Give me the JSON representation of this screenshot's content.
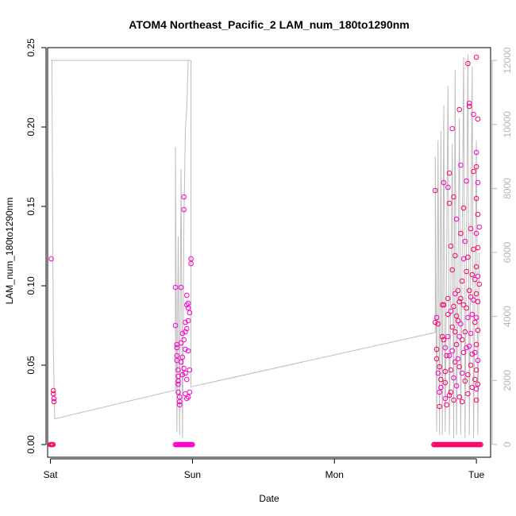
{
  "chart_data": {
    "type": "scatter",
    "title": "ATOM4 Northeast_Pacific_2 LAM_num_180to1290nm",
    "xlabel": "Date",
    "ylabel": "LAM_num_180to1290nm",
    "x_ticks": [
      "Sat",
      "Sun",
      "Mon",
      "Tue"
    ],
    "xlim": [
      -0.02,
      3.1
    ],
    "ylim": [
      -0.008,
      0.25
    ],
    "y_ticks": [
      "0.00",
      "0.05",
      "0.10",
      "0.15",
      "0.20",
      "0.25"
    ],
    "y_right_lim": [
      -400,
      12400
    ],
    "y_right_ticks": [
      "0",
      "2000",
      "4000",
      "6000",
      "8000",
      "10000",
      "12000"
    ],
    "grid": false,
    "colors": {
      "points_primary": "#ff0066",
      "points_secondary": "#ff00cc",
      "right_series": "#bdbdbd",
      "right_axis": "#b5b5b5"
    },
    "series": [
      {
        "axis": "left",
        "points": [
          [
            0.005,
            0.117
          ],
          [
            0.02,
            0.034
          ],
          [
            0.02,
            0.032
          ],
          [
            0.025,
            0.029
          ],
          [
            0.025,
            0.027
          ],
          [
            0.88,
            0.099
          ],
          [
            0.88,
            0.075
          ],
          [
            0.89,
            0.063
          ],
          [
            0.89,
            0.061
          ],
          [
            0.89,
            0.056
          ],
          [
            0.89,
            0.053
          ],
          [
            0.9,
            0.047
          ],
          [
            0.9,
            0.043
          ],
          [
            0.9,
            0.04
          ],
          [
            0.9,
            0.038
          ],
          [
            0.9,
            0.033
          ],
          [
            0.91,
            0.03
          ],
          [
            0.91,
            0.027
          ],
          [
            0.91,
            0.025
          ],
          [
            0.92,
            0.099
          ],
          [
            0.92,
            0.064
          ],
          [
            0.92,
            0.052
          ],
          [
            0.93,
            0.07
          ],
          [
            0.93,
            0.055
          ],
          [
            0.93,
            0.044
          ],
          [
            0.94,
            0.156
          ],
          [
            0.94,
            0.148
          ],
          [
            0.94,
            0.066
          ],
          [
            0.94,
            0.048
          ],
          [
            0.95,
            0.077
          ],
          [
            0.95,
            0.071
          ],
          [
            0.95,
            0.06
          ],
          [
            0.95,
            0.045
          ],
          [
            0.95,
            0.032
          ],
          [
            0.96,
            0.094
          ],
          [
            0.96,
            0.088
          ],
          [
            0.96,
            0.073
          ],
          [
            0.96,
            0.041
          ],
          [
            0.96,
            0.029
          ],
          [
            0.97,
            0.089
          ],
          [
            0.97,
            0.086
          ],
          [
            0.97,
            0.078
          ],
          [
            0.97,
            0.059
          ],
          [
            0.97,
            0.03
          ],
          [
            0.98,
            0.083
          ],
          [
            0.98,
            0.047
          ],
          [
            0.98,
            0.033
          ],
          [
            0.99,
            0.117
          ],
          [
            0.99,
            0.114
          ],
          [
            2.71,
            0.16
          ],
          [
            2.71,
            0.077
          ],
          [
            2.72,
            0.08
          ],
          [
            2.72,
            0.06
          ],
          [
            2.72,
            0.054
          ],
          [
            2.73,
            0.045
          ],
          [
            2.73,
            0.076
          ],
          [
            2.74,
            0.049
          ],
          [
            2.74,
            0.033
          ],
          [
            2.74,
            0.024
          ],
          [
            2.75,
            0.041
          ],
          [
            2.75,
            0.036
          ],
          [
            2.76,
            0.088
          ],
          [
            2.76,
            0.068
          ],
          [
            2.77,
            0.165
          ],
          [
            2.77,
            0.088
          ],
          [
            2.77,
            0.066
          ],
          [
            2.78,
            0.061
          ],
          [
            2.78,
            0.046
          ],
          [
            2.78,
            0.039
          ],
          [
            2.78,
            0.029
          ],
          [
            2.79,
            0.056
          ],
          [
            2.79,
            0.025
          ],
          [
            2.8,
            0.162
          ],
          [
            2.8,
            0.092
          ],
          [
            2.8,
            0.082
          ],
          [
            2.8,
            0.068
          ],
          [
            2.81,
            0.171
          ],
          [
            2.81,
            0.152
          ],
          [
            2.81,
            0.056
          ],
          [
            2.81,
            0.031
          ],
          [
            2.82,
            0.125
          ],
          [
            2.82,
            0.084
          ],
          [
            2.82,
            0.047
          ],
          [
            2.82,
            0.033
          ],
          [
            2.83,
            0.199
          ],
          [
            2.83,
            0.11
          ],
          [
            2.83,
            0.074
          ],
          [
            2.83,
            0.059
          ],
          [
            2.84,
            0.156
          ],
          [
            2.84,
            0.087
          ],
          [
            2.84,
            0.042
          ],
          [
            2.84,
            0.028
          ],
          [
            2.85,
            0.119
          ],
          [
            2.85,
            0.095
          ],
          [
            2.85,
            0.071
          ],
          [
            2.85,
            0.052
          ],
          [
            2.86,
            0.142
          ],
          [
            2.86,
            0.081
          ],
          [
            2.86,
            0.063
          ],
          [
            2.86,
            0.037
          ],
          [
            2.87,
            0.097
          ],
          [
            2.87,
            0.078
          ],
          [
            2.87,
            0.054
          ],
          [
            2.88,
            0.211
          ],
          [
            2.88,
            0.09
          ],
          [
            2.88,
            0.068
          ],
          [
            2.88,
            0.049
          ],
          [
            2.88,
            0.03
          ],
          [
            2.89,
            0.176
          ],
          [
            2.89,
            0.133
          ],
          [
            2.89,
            0.092
          ],
          [
            2.89,
            0.076
          ],
          [
            2.9,
            0.103
          ],
          [
            2.9,
            0.066
          ],
          [
            2.9,
            0.045
          ],
          [
            2.9,
            0.027
          ],
          [
            2.91,
            0.149
          ],
          [
            2.91,
            0.117
          ],
          [
            2.91,
            0.088
          ],
          [
            2.91,
            0.058
          ],
          [
            2.92,
            0.128
          ],
          [
            2.92,
            0.071
          ],
          [
            2.92,
            0.04
          ],
          [
            2.93,
            0.166
          ],
          [
            2.93,
            0.109
          ],
          [
            2.93,
            0.086
          ],
          [
            2.93,
            0.061
          ],
          [
            2.94,
            0.24
          ],
          [
            2.94,
            0.118
          ],
          [
            2.94,
            0.08
          ],
          [
            2.94,
            0.044
          ],
          [
            2.94,
            0.032
          ],
          [
            2.95,
            0.215
          ],
          [
            2.95,
            0.213
          ],
          [
            2.95,
            0.097
          ],
          [
            2.95,
            0.062
          ],
          [
            2.96,
            0.136
          ],
          [
            2.96,
            0.093
          ],
          [
            2.96,
            0.07
          ],
          [
            2.96,
            0.05
          ],
          [
            2.97,
            0.107
          ],
          [
            2.97,
            0.082
          ],
          [
            2.97,
            0.057
          ],
          [
            2.97,
            0.036
          ],
          [
            2.98,
            0.208
          ],
          [
            2.98,
            0.172
          ],
          [
            2.98,
            0.123
          ],
          [
            2.98,
            0.091
          ],
          [
            2.99,
            0.104
          ],
          [
            2.99,
            0.077
          ],
          [
            2.99,
            0.058
          ],
          [
            2.99,
            0.041
          ],
          [
            3.0,
            0.244
          ],
          [
            3.0,
            0.184
          ],
          [
            3.0,
            0.175
          ],
          [
            3.0,
            0.155
          ],
          [
            3.0,
            0.133
          ],
          [
            3.0,
            0.112
          ],
          [
            3.0,
            0.095
          ],
          [
            3.0,
            0.08
          ],
          [
            3.0,
            0.063
          ],
          [
            3.0,
            0.047
          ],
          [
            3.0,
            0.035
          ],
          [
            3.0,
            0.028
          ],
          [
            3.01,
            0.205
          ],
          [
            3.01,
            0.165
          ],
          [
            3.01,
            0.145
          ],
          [
            3.01,
            0.124
          ],
          [
            3.01,
            0.106
          ],
          [
            3.01,
            0.09
          ],
          [
            3.01,
            0.072
          ],
          [
            3.01,
            0.053
          ],
          [
            3.01,
            0.038
          ],
          [
            3.02,
            0.101
          ],
          [
            3.02,
            0.137
          ]
        ]
      },
      {
        "axis": "right",
        "line": [
          [
            0.0,
            12000
          ],
          [
            0.01,
            12000
          ],
          [
            0.02,
            3000
          ],
          [
            0.03,
            800
          ],
          [
            0.88,
            1700
          ],
          [
            0.88,
            9300
          ],
          [
            0.89,
            400
          ],
          [
            0.9,
            6500
          ],
          [
            0.91,
            300
          ],
          [
            0.92,
            8600
          ],
          [
            0.93,
            200
          ],
          [
            0.94,
            7000
          ],
          [
            0.95,
            9800
          ],
          [
            0.96,
            10500
          ],
          [
            0.97,
            12000
          ],
          [
            0.99,
            12000
          ],
          [
            0.01,
            12000
          ],
          [
            0.99,
            12000
          ],
          [
            0.99,
            1800
          ],
          [
            2.71,
            3500
          ],
          [
            2.71,
            9000
          ],
          [
            2.72,
            400
          ],
          [
            2.73,
            9500
          ],
          [
            2.74,
            300
          ],
          [
            2.75,
            9800
          ],
          [
            2.76,
            300
          ],
          [
            2.77,
            10600
          ],
          [
            2.78,
            400
          ],
          [
            2.8,
            11200
          ],
          [
            2.81,
            300
          ],
          [
            2.83,
            9400
          ],
          [
            2.84,
            200
          ],
          [
            2.85,
            11700
          ],
          [
            2.86,
            300
          ],
          [
            2.88,
            10200
          ],
          [
            2.89,
            300
          ],
          [
            2.91,
            12100
          ],
          [
            2.92,
            200
          ],
          [
            2.94,
            12200
          ],
          [
            2.95,
            300
          ],
          [
            2.97,
            11800
          ],
          [
            2.98,
            200
          ],
          [
            3.0,
            9500
          ],
          [
            3.01,
            300
          ],
          [
            3.02,
            6000
          ]
        ]
      }
    ],
    "zero_band": [
      [
        0.0,
        0.02
      ],
      [
        0.88,
        1.0
      ],
      [
        2.7,
        3.03
      ]
    ]
  }
}
